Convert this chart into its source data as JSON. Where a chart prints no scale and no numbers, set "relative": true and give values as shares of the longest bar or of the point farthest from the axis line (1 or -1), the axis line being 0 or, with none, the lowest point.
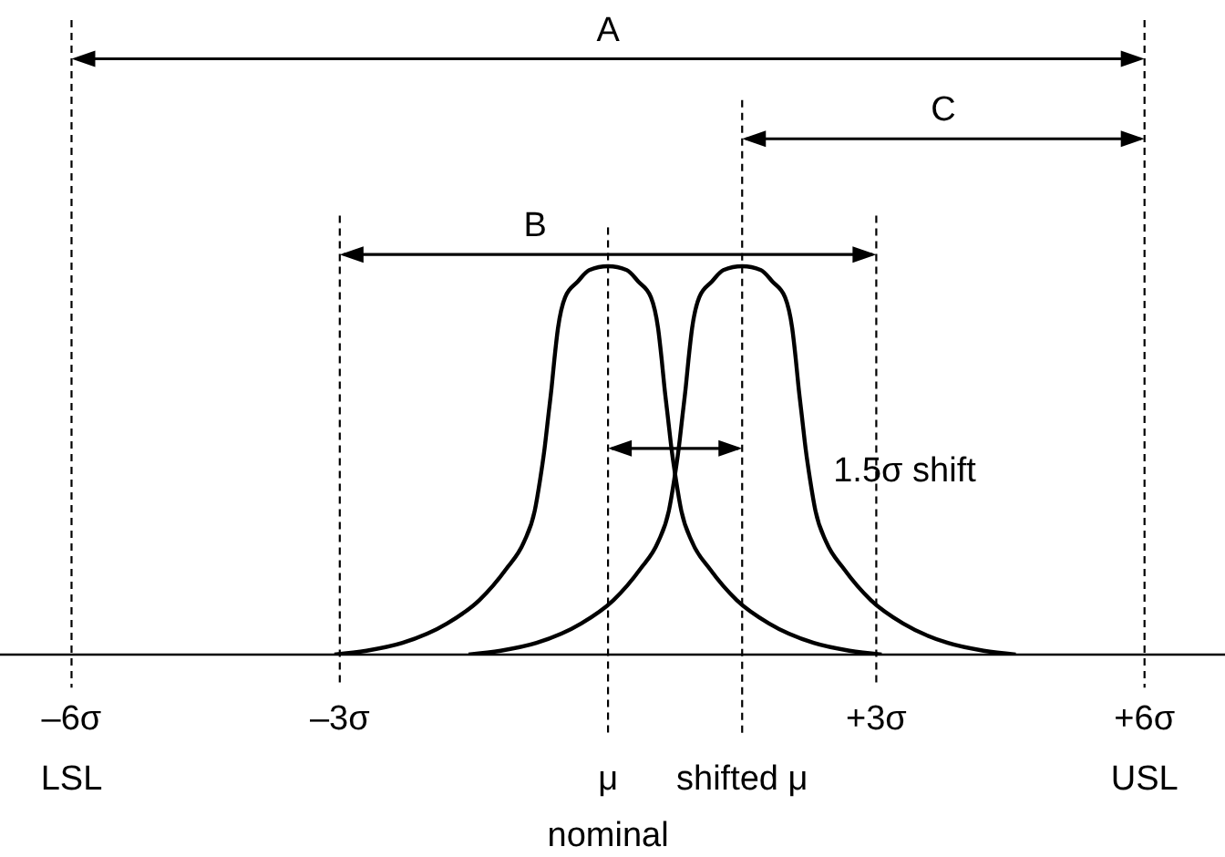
{
  "chart_data": {
    "type": "line",
    "relative": true,
    "line_style": "solid",
    "marker": "none",
    "xlim": [
      -6.8,
      6.9
    ],
    "xticks": [
      {
        "value": -6,
        "label": "–6σ"
      },
      {
        "value": -3,
        "label": "–3σ"
      },
      {
        "value": 3,
        "label": "+3σ"
      },
      {
        "value": 6,
        "label": "+6σ"
      }
    ],
    "series": [
      {
        "color": "#000000",
        "x": [
          -3.06,
          -2.7,
          -2.3,
          -1.8,
          -1.44,
          -1.14,
          -0.94,
          -0.82,
          -0.76,
          -0.71,
          -0.67,
          -0.63,
          -0.6,
          -0.56,
          -0.48,
          -0.34,
          -0.21,
          0,
          0.21,
          0.34,
          0.48,
          0.56,
          0.6,
          0.63,
          0.67,
          0.71,
          0.76,
          0.82,
          0.94,
          1.14,
          1.44,
          1.8,
          2.3,
          2.7,
          3.06
        ],
        "values": [
          0,
          0.01,
          0.03,
          0.08,
          0.14,
          0.22,
          0.29,
          0.37,
          0.45,
          0.53,
          0.61,
          0.69,
          0.76,
          0.84,
          0.92,
          0.96,
          0.99,
          1,
          0.99,
          0.96,
          0.92,
          0.84,
          0.76,
          0.69,
          0.61,
          0.53,
          0.45,
          0.37,
          0.29,
          0.22,
          0.14,
          0.08,
          0.03,
          0.01,
          0
        ]
      },
      {
        "color": "#000000",
        "x": [
          -1.56,
          -1.2,
          -0.8,
          -0.3,
          0.06,
          0.36,
          0.56,
          0.68,
          0.74,
          0.79,
          0.83,
          0.87,
          0.9,
          0.94,
          1.02,
          1.16,
          1.29,
          1.5,
          1.71,
          1.84,
          1.98,
          2.06,
          2.1,
          2.13,
          2.17,
          2.21,
          2.26,
          2.32,
          2.44,
          2.64,
          2.94,
          3.3,
          3.8,
          4.2,
          4.56
        ],
        "values": [
          0,
          0.01,
          0.03,
          0.08,
          0.14,
          0.22,
          0.29,
          0.37,
          0.45,
          0.53,
          0.61,
          0.69,
          0.76,
          0.84,
          0.92,
          0.96,
          0.99,
          1,
          0.99,
          0.96,
          0.92,
          0.84,
          0.76,
          0.69,
          0.61,
          0.53,
          0.45,
          0.37,
          0.29,
          0.22,
          0.14,
          0.08,
          0.03,
          0.01,
          0
        ]
      }
    ],
    "ref_lines": [
      {
        "axis": "x",
        "value": -6,
        "label": "LSL",
        "line_style": "dashed"
      },
      {
        "axis": "x",
        "value": -3,
        "line_style": "dashed"
      },
      {
        "axis": "x",
        "value": 0,
        "label": "μ\nnominal",
        "line_style": "dashed"
      },
      {
        "axis": "x",
        "value": 1.5,
        "label": "shifted μ",
        "line_style": "dashed"
      },
      {
        "axis": "x",
        "value": 3,
        "line_style": "dashed"
      },
      {
        "axis": "x",
        "value": 6,
        "label": "USL",
        "line_style": "dashed"
      }
    ],
    "annotations": [
      "A",
      "B",
      "C",
      "1.5σ shift"
    ]
  }
}
